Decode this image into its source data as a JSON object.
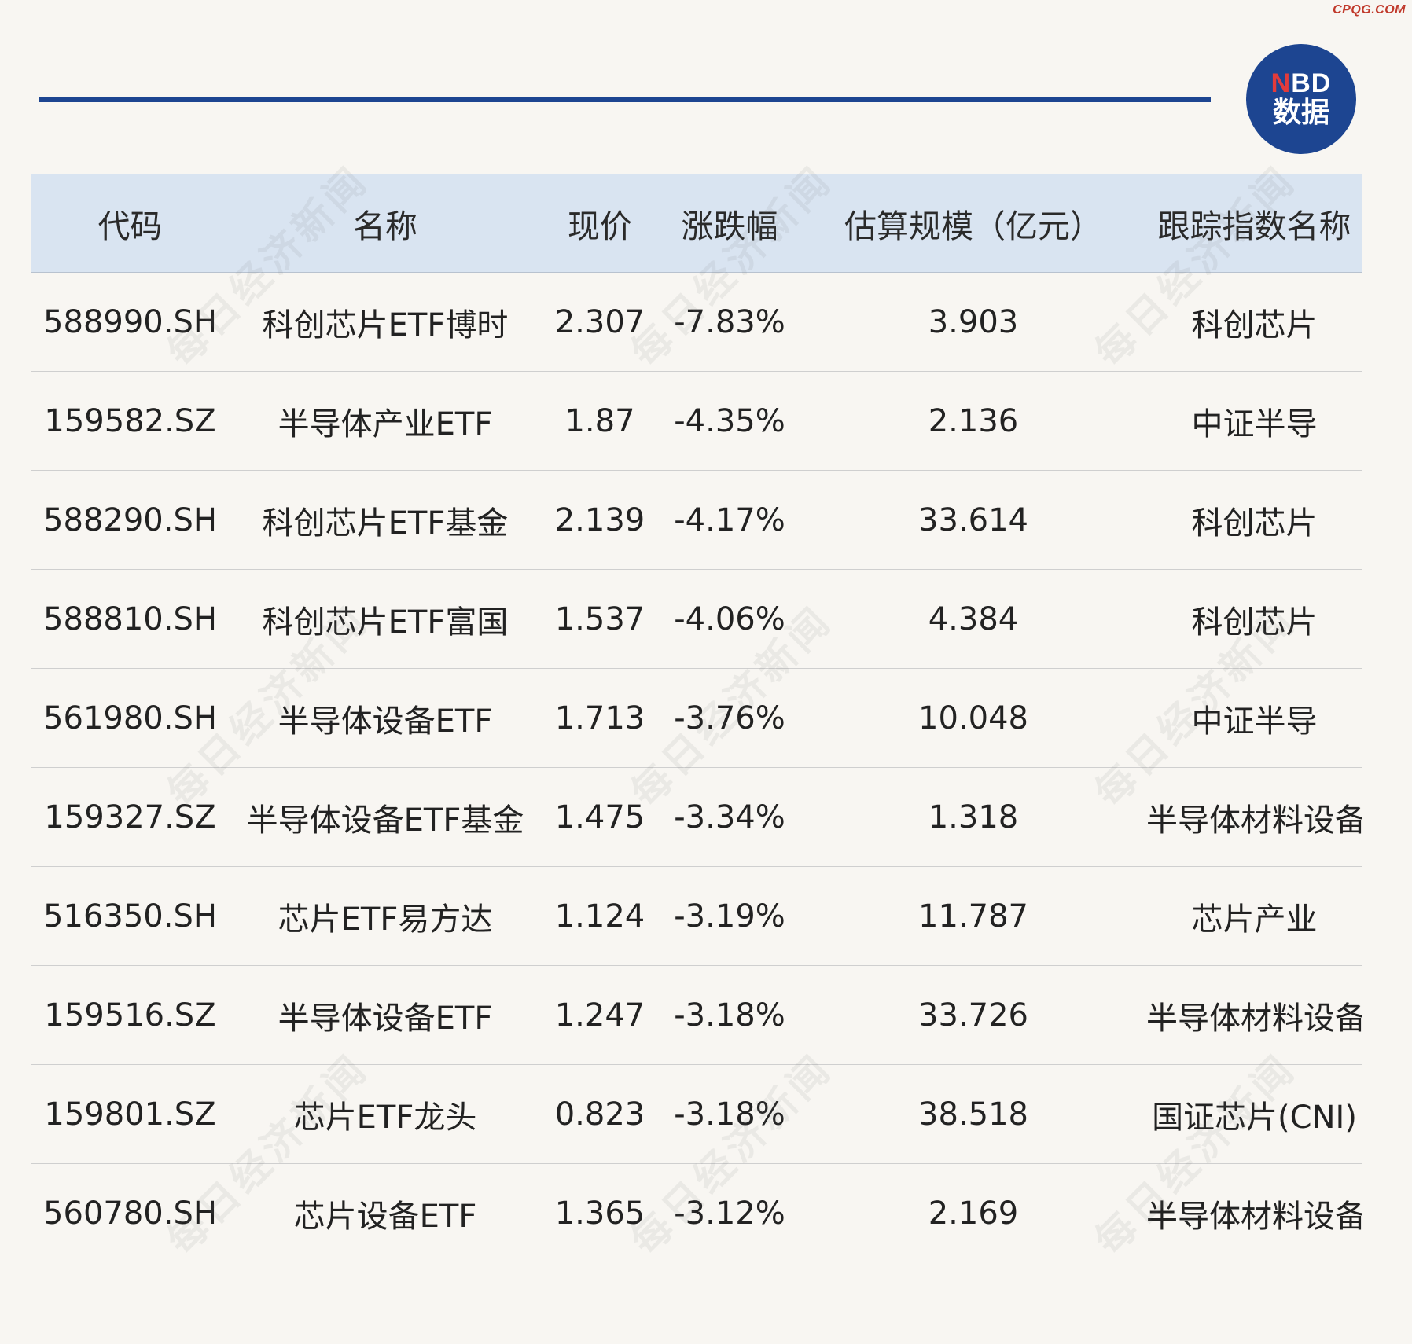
{
  "corner_mark": "CPQG.COM",
  "logo": {
    "line1_n": "N",
    "line1_rest": "BD",
    "line2": "数据"
  },
  "watermark_text": "每日经济新闻",
  "table": {
    "headers": [
      "代码",
      "名称",
      "现价",
      "涨跌幅",
      "估算规模（亿元）",
      "跟踪指数名称"
    ],
    "rows": [
      [
        "588990.SH",
        "科创芯片ETF博时",
        "2.307",
        "-7.83%",
        "3.903",
        "科创芯片"
      ],
      [
        "159582.SZ",
        "半导体产业ETF",
        "1.87",
        "-4.35%",
        "2.136",
        "中证半导"
      ],
      [
        "588290.SH",
        "科创芯片ETF基金",
        "2.139",
        "-4.17%",
        "33.614",
        "科创芯片"
      ],
      [
        "588810.SH",
        "科创芯片ETF富国",
        "1.537",
        "-4.06%",
        "4.384",
        "科创芯片"
      ],
      [
        "561980.SH",
        "半导体设备ETF",
        "1.713",
        "-3.76%",
        "10.048",
        "中证半导"
      ],
      [
        "159327.SZ",
        "半导体设备ETF基金",
        "1.475",
        "-3.34%",
        "1.318",
        "半导体材料设备"
      ],
      [
        "516350.SH",
        "芯片ETF易方达",
        "1.124",
        "-3.19%",
        "11.787",
        "芯片产业"
      ],
      [
        "159516.SZ",
        "半导体设备ETF",
        "1.247",
        "-3.18%",
        "33.726",
        "半导体材料设备"
      ],
      [
        "159801.SZ",
        "芯片ETF龙头",
        "0.823",
        "-3.18%",
        "38.518",
        "国证芯片(CNI)"
      ],
      [
        "560780.SH",
        "芯片设备ETF",
        "1.365",
        "-3.12%",
        "2.169",
        "半导体材料设备"
      ]
    ]
  }
}
